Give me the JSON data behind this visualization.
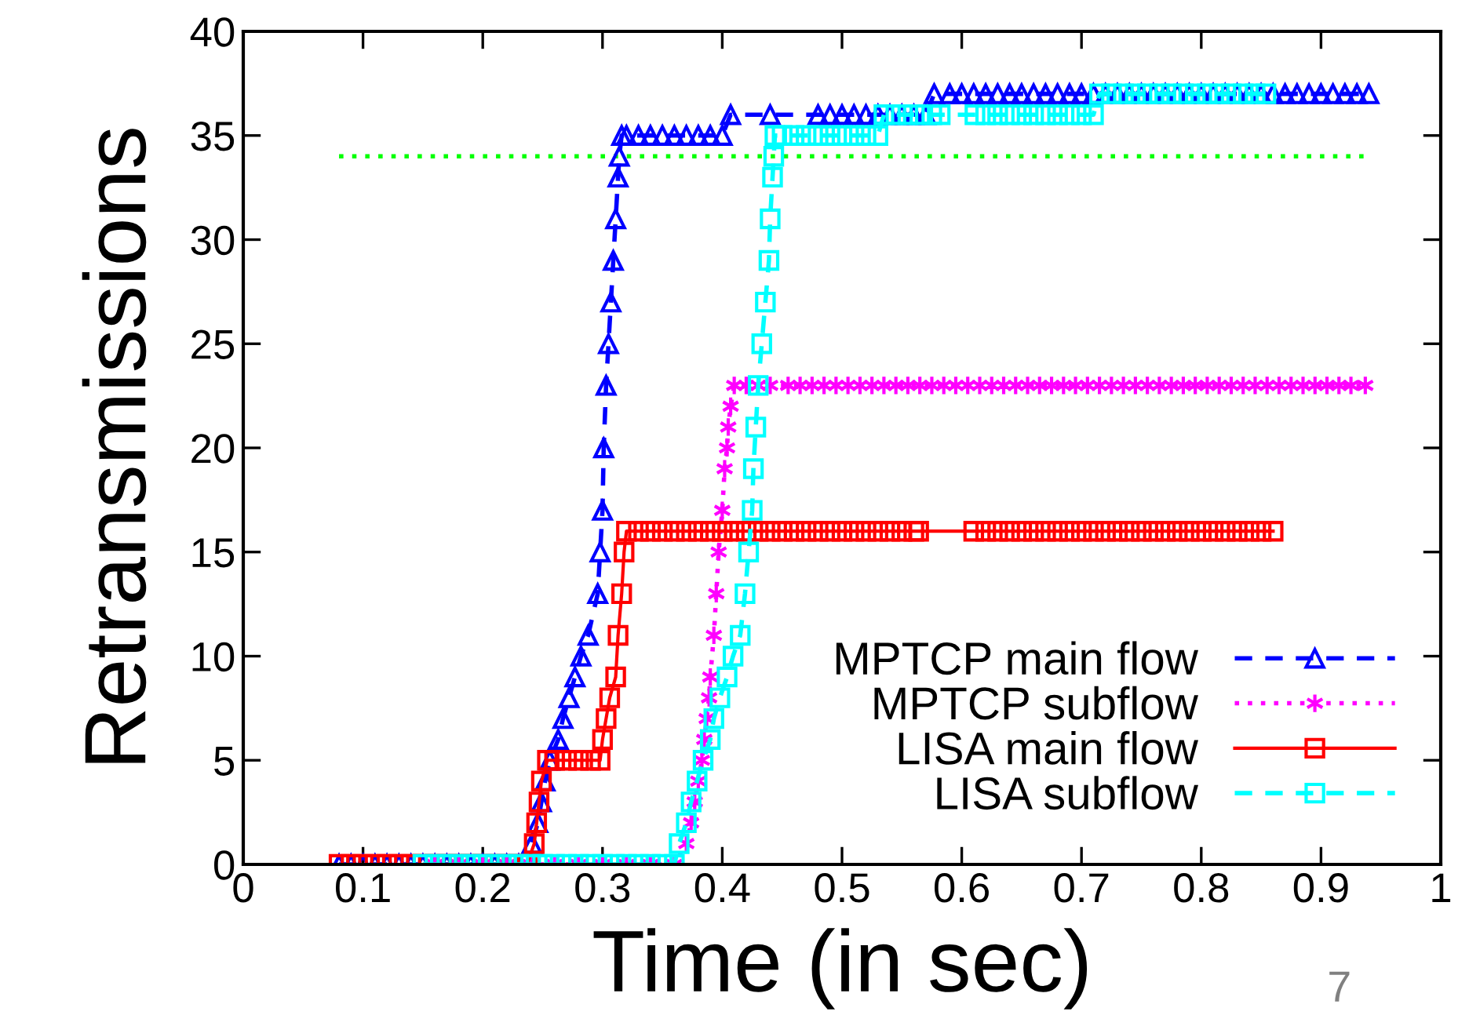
{
  "chart_data": {
    "type": "line",
    "xlabel": "Time (in sec)",
    "ylabel": "Retransmissions",
    "xlim": [
      0,
      1
    ],
    "xticks": [
      0,
      0.1,
      0.2,
      0.3,
      0.4,
      0.5,
      0.6,
      0.7,
      0.8,
      0.9,
      1
    ],
    "ylim": [
      0,
      40
    ],
    "yticks": [
      0,
      5,
      10,
      15,
      20,
      25,
      30,
      35,
      40
    ],
    "grid": false,
    "legend": "bottom right",
    "annotations": [
      "7"
    ],
    "series": [
      {
        "color": "#00ff00",
        "line_style": "dotted",
        "marker": "none",
        "x": [
          0.08,
          0.94
        ],
        "values": [
          34,
          34
        ]
      },
      {
        "name": "MPTCP main flow",
        "color": "#0000ff",
        "line_style": "dashed",
        "marker": "triangle",
        "x": [
          0.08,
          0.09,
          0.1,
          0.11,
          0.12,
          0.13,
          0.14,
          0.15,
          0.16,
          0.17,
          0.18,
          0.19,
          0.2,
          0.21,
          0.22,
          0.23,
          0.24,
          0.241,
          0.246,
          0.249,
          0.252,
          0.256,
          0.263,
          0.267,
          0.272,
          0.277,
          0.282,
          0.288,
          0.296,
          0.298,
          0.3,
          0.301,
          0.303,
          0.305,
          0.307,
          0.309,
          0.311,
          0.313,
          0.314,
          0.316,
          0.32,
          0.33,
          0.34,
          0.35,
          0.36,
          0.37,
          0.38,
          0.39,
          0.4,
          0.407,
          0.44,
          0.48,
          0.49,
          0.5,
          0.51,
          0.52,
          0.53,
          0.54,
          0.55,
          0.56,
          0.57,
          0.577,
          0.59,
          0.6,
          0.61,
          0.62,
          0.63,
          0.64,
          0.65,
          0.66,
          0.67,
          0.68,
          0.69,
          0.7,
          0.71,
          0.72,
          0.73,
          0.74,
          0.75,
          0.76,
          0.77,
          0.78,
          0.79,
          0.8,
          0.81,
          0.82,
          0.83,
          0.84,
          0.85,
          0.86,
          0.87,
          0.88,
          0.89,
          0.9,
          0.91,
          0.92,
          0.93,
          0.94
        ],
        "values": [
          0,
          0,
          0,
          0,
          0,
          0,
          0,
          0,
          0,
          0,
          0,
          0,
          0,
          0,
          0,
          0,
          0,
          1,
          2,
          3,
          4,
          5,
          6,
          7,
          8,
          9,
          10,
          11,
          13,
          15,
          17,
          20,
          23,
          25,
          27,
          29,
          31,
          33,
          34,
          35,
          35,
          35,
          35,
          35,
          35,
          35,
          35,
          35,
          35,
          36,
          36,
          36,
          36,
          36,
          36,
          36,
          36,
          36,
          36,
          36,
          36,
          37,
          37,
          37,
          37,
          37,
          37,
          37,
          37,
          37,
          37,
          37,
          37,
          37,
          37,
          37,
          37,
          37,
          37,
          37,
          37,
          37,
          37,
          37,
          37,
          37,
          37,
          37,
          37,
          37,
          37,
          37,
          37,
          37,
          37,
          37,
          37,
          37
        ]
      },
      {
        "name": "MPTCP subflow",
        "color": "#ff00ff",
        "line_style": "dotted",
        "marker": "cross",
        "x": [
          0.16,
          0.18,
          0.2,
          0.22,
          0.24,
          0.26,
          0.28,
          0.3,
          0.32,
          0.34,
          0.36,
          0.37,
          0.374,
          0.377,
          0.38,
          0.383,
          0.385,
          0.387,
          0.389,
          0.39,
          0.393,
          0.395,
          0.397,
          0.4,
          0.402,
          0.404,
          0.405,
          0.407,
          0.41,
          0.42,
          0.43,
          0.44,
          0.455,
          0.465,
          0.475,
          0.485,
          0.495,
          0.505,
          0.515,
          0.525,
          0.535,
          0.545,
          0.555,
          0.565,
          0.575,
          0.585,
          0.595,
          0.605,
          0.615,
          0.625,
          0.635,
          0.645,
          0.655,
          0.665,
          0.675,
          0.685,
          0.695,
          0.705,
          0.715,
          0.725,
          0.735,
          0.745,
          0.755,
          0.765,
          0.775,
          0.785,
          0.795,
          0.805,
          0.815,
          0.825,
          0.835,
          0.845,
          0.855,
          0.865,
          0.875,
          0.885,
          0.895,
          0.905,
          0.915,
          0.925,
          0.937
        ],
        "values": [
          0,
          0,
          0,
          0,
          0,
          0,
          0,
          0,
          0,
          0,
          0,
          1,
          2,
          3,
          4,
          5,
          6,
          7,
          8,
          9,
          11,
          13,
          15,
          17,
          19,
          20,
          21,
          22,
          23,
          23,
          23,
          23,
          23,
          23,
          23,
          23,
          23,
          23,
          23,
          23,
          23,
          23,
          23,
          23,
          23,
          23,
          23,
          23,
          23,
          23,
          23,
          23,
          23,
          23,
          23,
          23,
          23,
          23,
          23,
          23,
          23,
          23,
          23,
          23,
          23,
          23,
          23,
          23,
          23,
          23,
          23,
          23,
          23,
          23,
          23,
          23,
          23,
          23,
          23,
          23,
          23
        ]
      },
      {
        "name": "LISA main flow",
        "color": "#ff0000",
        "line_style": "solid",
        "marker": "square",
        "x": [
          0.08,
          0.09,
          0.1,
          0.11,
          0.12,
          0.13,
          0.14,
          0.15,
          0.16,
          0.17,
          0.18,
          0.19,
          0.2,
          0.21,
          0.22,
          0.23,
          0.237,
          0.243,
          0.245,
          0.247,
          0.249,
          0.254,
          0.26,
          0.27,
          0.28,
          0.29,
          0.298,
          0.3,
          0.303,
          0.306,
          0.311,
          0.313,
          0.316,
          0.318,
          0.32,
          0.33,
          0.34,
          0.35,
          0.36,
          0.37,
          0.38,
          0.39,
          0.4,
          0.41,
          0.42,
          0.43,
          0.44,
          0.45,
          0.46,
          0.47,
          0.48,
          0.49,
          0.5,
          0.51,
          0.52,
          0.53,
          0.54,
          0.55,
          0.56,
          0.564,
          0.61,
          0.62,
          0.63,
          0.64,
          0.65,
          0.66,
          0.67,
          0.68,
          0.69,
          0.7,
          0.71,
          0.72,
          0.73,
          0.74,
          0.75,
          0.76,
          0.77,
          0.78,
          0.79,
          0.8,
          0.81,
          0.82,
          0.83,
          0.84,
          0.85,
          0.86
        ],
        "values": [
          0,
          0,
          0,
          0,
          0,
          0,
          0,
          0,
          0,
          0,
          0,
          0,
          0,
          0,
          0,
          0,
          0,
          1,
          2,
          3,
          4,
          5,
          5,
          5,
          5,
          5,
          5,
          6,
          7,
          8,
          9,
          11,
          13,
          15,
          16,
          16,
          16,
          16,
          16,
          16,
          16,
          16,
          16,
          16,
          16,
          16,
          16,
          16,
          16,
          16,
          16,
          16,
          16,
          16,
          16,
          16,
          16,
          16,
          16,
          16,
          16,
          16,
          16,
          16,
          16,
          16,
          16,
          16,
          16,
          16,
          16,
          16,
          16,
          16,
          16,
          16,
          16,
          16,
          16,
          16,
          16,
          16,
          16,
          16,
          16,
          16
        ]
      },
      {
        "name": "LISA subflow",
        "color": "#00ffff",
        "line_style": "dashed",
        "marker": "square",
        "x": [
          0.15,
          0.16,
          0.17,
          0.18,
          0.19,
          0.2,
          0.21,
          0.22,
          0.23,
          0.24,
          0.25,
          0.26,
          0.27,
          0.28,
          0.29,
          0.3,
          0.31,
          0.32,
          0.33,
          0.34,
          0.35,
          0.36,
          0.364,
          0.37,
          0.374,
          0.379,
          0.384,
          0.39,
          0.393,
          0.398,
          0.404,
          0.409,
          0.415,
          0.419,
          0.422,
          0.425,
          0.426,
          0.428,
          0.43,
          0.433,
          0.436,
          0.439,
          0.44,
          0.442,
          0.443,
          0.444,
          0.45,
          0.46,
          0.47,
          0.48,
          0.49,
          0.5,
          0.51,
          0.52,
          0.53,
          0.535,
          0.545,
          0.555,
          0.565,
          0.575,
          0.582,
          0.611,
          0.62,
          0.63,
          0.64,
          0.65,
          0.66,
          0.67,
          0.68,
          0.69,
          0.7,
          0.71,
          0.715,
          0.725,
          0.735,
          0.745,
          0.755,
          0.765,
          0.775,
          0.785,
          0.795,
          0.805,
          0.815,
          0.825,
          0.835,
          0.845,
          0.854
        ],
        "values": [
          0,
          0,
          0,
          0,
          0,
          0,
          0,
          0,
          0,
          0,
          0,
          0,
          0,
          0,
          0,
          0,
          0,
          0,
          0,
          0,
          0,
          0,
          1,
          2,
          3,
          4,
          5,
          6,
          7,
          8,
          9,
          10,
          11,
          13,
          15,
          17,
          19,
          21,
          23,
          25,
          27,
          29,
          31,
          33,
          34,
          35,
          35,
          35,
          35,
          35,
          35,
          35,
          35,
          35,
          35,
          36,
          36,
          36,
          36,
          36,
          36,
          36,
          36,
          36,
          36,
          36,
          36,
          36,
          36,
          36,
          36,
          36,
          37,
          37,
          37,
          37,
          37,
          37,
          37,
          37,
          37,
          37,
          37,
          37,
          37,
          37,
          37
        ]
      }
    ]
  }
}
